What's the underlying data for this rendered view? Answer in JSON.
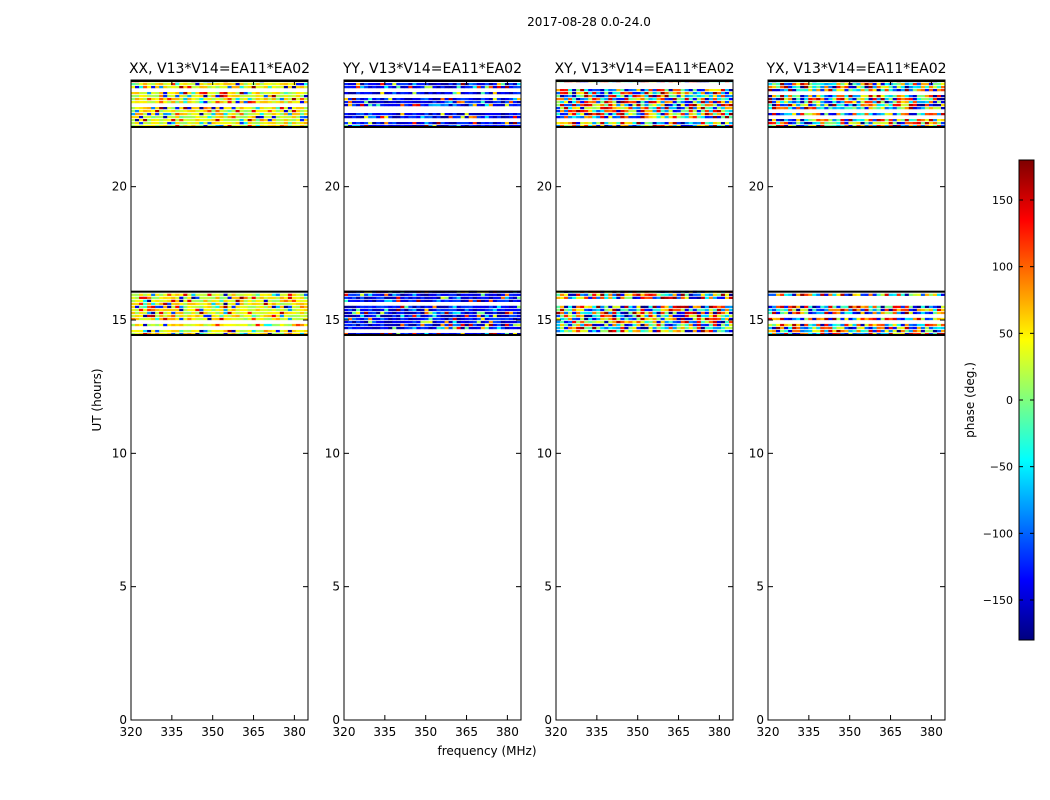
{
  "figure": {
    "title": "2017-08-28 0.0-24.0",
    "xlabel": "frequency (MHz)",
    "ylabel": "UT (hours)"
  },
  "chart_data": [
    {
      "type": "heatmap",
      "title": "XX, V13*V14=EA11*EA02",
      "xlim": [
        320,
        385
      ],
      "ylim": [
        0,
        24
      ],
      "xticks": [
        320,
        335,
        350,
        365,
        380
      ],
      "yticks": [
        0,
        5,
        10,
        15,
        20
      ],
      "data_bands_hours": [
        [
          14.4,
          16.1
        ],
        [
          22.2,
          24.0
        ]
      ],
      "dominant_phase_deg": 40
    },
    {
      "type": "heatmap",
      "title": "YY, V13*V14=EA11*EA02",
      "xlim": [
        320,
        385
      ],
      "ylim": [
        0,
        24
      ],
      "xticks": [
        320,
        335,
        350,
        365,
        380
      ],
      "yticks": [
        0,
        5,
        10,
        15,
        20
      ],
      "data_bands_hours": [
        [
          14.4,
          16.1
        ],
        [
          22.2,
          24.0
        ]
      ],
      "dominant_phase_deg": -140
    },
    {
      "type": "heatmap",
      "title": "XY, V13*V14=EA11*EA02",
      "xlim": [
        320,
        385
      ],
      "ylim": [
        0,
        24
      ],
      "xticks": [
        320,
        335,
        350,
        365,
        380
      ],
      "yticks": [
        0,
        5,
        10,
        15,
        20
      ],
      "data_bands_hours": [
        [
          14.4,
          16.1
        ],
        [
          22.2,
          24.0
        ]
      ],
      "dominant_phase_deg": null
    },
    {
      "type": "heatmap",
      "title": "YX, V13*V14=EA11*EA02",
      "xlim": [
        320,
        385
      ],
      "ylim": [
        0,
        24
      ],
      "xticks": [
        320,
        335,
        350,
        365,
        380
      ],
      "yticks": [
        0,
        5,
        10,
        15,
        20
      ],
      "data_bands_hours": [
        [
          14.4,
          16.1
        ],
        [
          22.2,
          24.0
        ]
      ],
      "dominant_phase_deg": null
    }
  ],
  "colorbar": {
    "label": "phase (deg.)",
    "range": [
      -180,
      180
    ],
    "ticks": [
      -150,
      -100,
      -50,
      0,
      50,
      100,
      150
    ],
    "tick_labels": [
      "−150",
      "−100",
      "−50",
      "0",
      "50",
      "100",
      "150"
    ],
    "colormap": "jet",
    "colors": [
      "#00007f",
      "#0000ff",
      "#007fff",
      "#00ffff",
      "#7fff7f",
      "#ffff00",
      "#ff7f00",
      "#ff0000",
      "#7f0000"
    ]
  }
}
